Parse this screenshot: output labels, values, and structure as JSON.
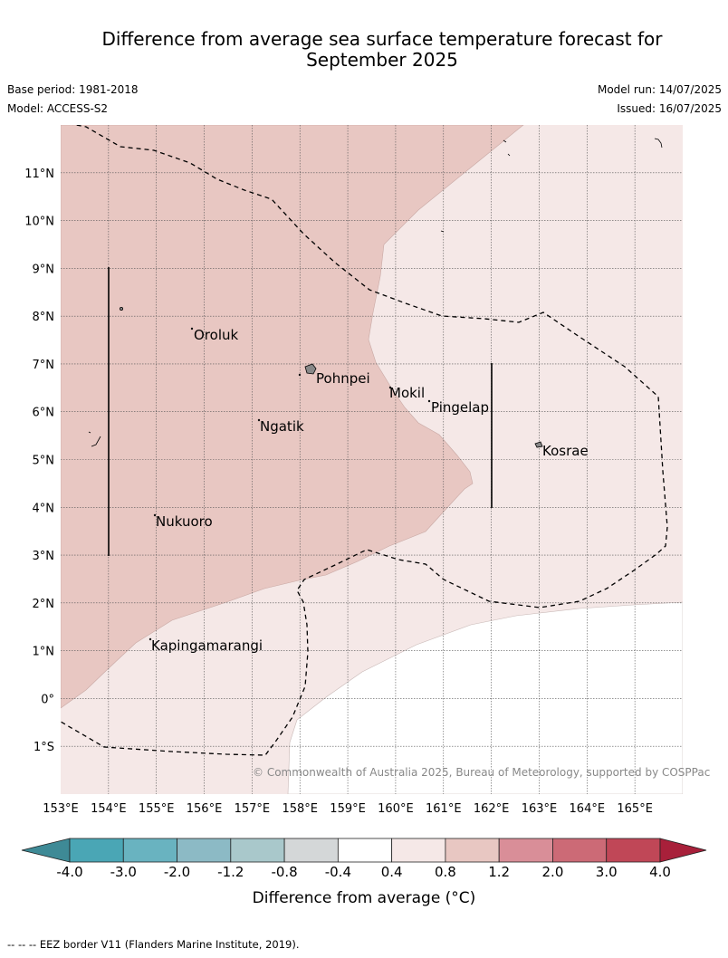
{
  "header": {
    "title_line1": "Difference from average sea surface temperature forecast for",
    "title_line2": "September 2025",
    "base_period": "Base period: 1981-2018",
    "model": "Model: ACCESS-S2",
    "model_run": "Model run: 14/07/2025",
    "issued": "Issued: 16/07/2025"
  },
  "map": {
    "lat_labels": [
      "11°N",
      "10°N",
      "9°N",
      "8°N",
      "7°N",
      "6°N",
      "5°N",
      "4°N",
      "3°N",
      "2°N",
      "1°N",
      "0°",
      "1°S"
    ],
    "lon_labels": [
      "153°E",
      "154°E",
      "155°E",
      "156°E",
      "157°E",
      "158°E",
      "159°E",
      "160°E",
      "161°E",
      "162°E",
      "163°E",
      "164°E",
      "165°E"
    ],
    "places": [
      "Oroluk",
      "Pohnpei",
      "Mokil",
      "Pingelap",
      "Ngatik",
      "Kosrae",
      "Nukuoro",
      "Kapingamarangi"
    ],
    "copyright": "© Commonwealth of Australia 2025, Bureau of Meteorology, supported by COSPPac"
  },
  "colorbar": {
    "ticks": [
      "-4.0",
      "-3.0",
      "-2.0",
      "-1.2",
      "-0.8",
      "-0.4",
      "0.4",
      "0.8",
      "1.2",
      "2.0",
      "3.0",
      "4.0"
    ],
    "colors": [
      "#3e8a96",
      "#4aa6b5",
      "#69b3c0",
      "#8cbac5",
      "#a9c8cb",
      "#d4d7d8",
      "#ffffff",
      "#f5e8e7",
      "#e8c7c2",
      "#d98e98",
      "#cc6a76",
      "#c04757",
      "#a8203a"
    ],
    "label": "Difference from average (°C)"
  },
  "footer": {
    "note": "-- -- -- EEZ border V11 (Flanders Marine Institute, 2019)."
  }
}
